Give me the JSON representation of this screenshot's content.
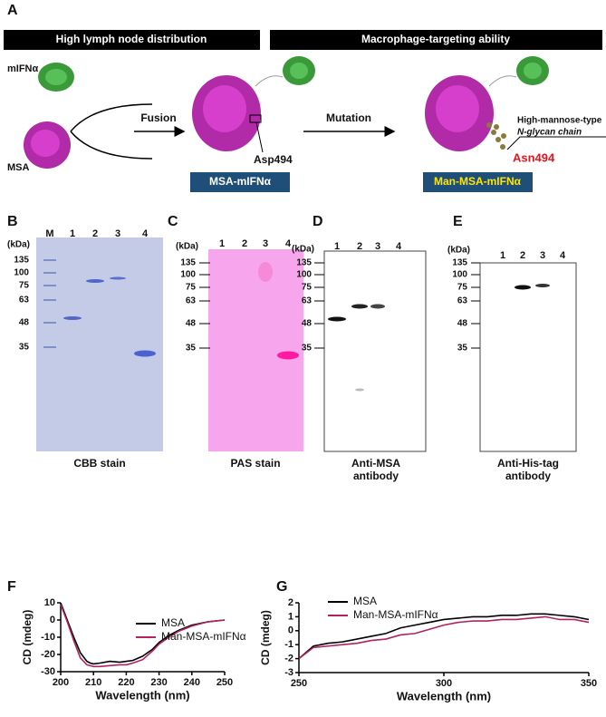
{
  "panel_labels": [
    "A",
    "B",
    "C",
    "D",
    "E",
    "F",
    "G"
  ],
  "panel_a": {
    "banners": [
      "High lymph node distribution",
      "Macrophage-targeting ability"
    ],
    "mifn": "mIFNα",
    "msa": "MSA",
    "fusion": "Fusion",
    "mutation": "Mutation",
    "asp": "Asp494",
    "asn": "Asn494",
    "glycan": [
      "High-mannose-type",
      "N-glycan chain"
    ],
    "boxes": [
      "MSA-mIFNα",
      "Man-MSA-mIFNα"
    ]
  },
  "gels": [
    {
      "lanes": [
        "M",
        "1",
        "2",
        "3",
        "4"
      ],
      "unit": "(kDa)",
      "markers": [
        "135",
        "100",
        "75",
        "63",
        "48",
        "35"
      ],
      "caption": [
        "CBB stain"
      ]
    },
    {
      "lanes": [
        "1",
        "2",
        "3",
        "4"
      ],
      "unit": "(kDa)",
      "markers": [
        "135",
        "100",
        "75",
        "63",
        "48",
        "35"
      ],
      "caption": [
        "PAS stain"
      ]
    },
    {
      "lanes": [
        "1",
        "2",
        "3",
        "4"
      ],
      "unit": "(kDa)",
      "markers": [
        "135",
        "100",
        "75",
        "63",
        "48",
        "35"
      ],
      "caption": [
        "Anti-MSA",
        "antibody"
      ]
    },
    {
      "lanes": [
        "1",
        "2",
        "3",
        "4"
      ],
      "unit": "(kDa)",
      "markers": [
        "135",
        "100",
        "75",
        "63",
        "48",
        "35"
      ],
      "caption": [
        "Anti-His-tag",
        "antibody"
      ]
    }
  ],
  "chart_data": [
    {
      "type": "line",
      "x_label": "Wavelength (nm)",
      "y_label": "CD (mdeg)",
      "x": [
        200,
        202,
        204,
        206,
        208,
        209,
        210,
        212,
        215,
        218,
        220,
        222,
        225,
        228,
        230,
        233,
        236,
        240,
        245,
        250
      ],
      "series": [
        {
          "name": "MSA",
          "color": "#000000",
          "values": [
            10,
            0,
            -10,
            -19,
            -24,
            -25,
            -25.5,
            -25,
            -24,
            -24.5,
            -24,
            -23.5,
            -21,
            -17,
            -13,
            -9,
            -6,
            -3,
            -1,
            0
          ]
        },
        {
          "name": "Man-MSA-mIFNα",
          "color": "#b0235f",
          "values": [
            9,
            -1,
            -12,
            -22,
            -26,
            -26.5,
            -27,
            -27,
            -26.5,
            -26,
            -26,
            -25,
            -23,
            -18,
            -14,
            -10,
            -6.5,
            -3.5,
            -1,
            0
          ]
        }
      ],
      "xlim": [
        200,
        250
      ],
      "xticks": [
        200,
        210,
        220,
        230,
        240,
        250
      ],
      "ylim": [
        -30,
        10
      ],
      "yticks": [
        -30,
        -20,
        -10,
        0,
        10
      ]
    },
    {
      "type": "line",
      "x_label": "Wavelength (nm)",
      "y_label": "CD (mdeg)",
      "x": [
        250,
        255,
        260,
        265,
        270,
        275,
        280,
        285,
        290,
        295,
        300,
        305,
        310,
        315,
        320,
        325,
        330,
        335,
        340,
        345,
        350
      ],
      "series": [
        {
          "name": "MSA",
          "color": "#000000",
          "values": [
            -2,
            -1.1,
            -0.9,
            -0.8,
            -0.6,
            -0.4,
            -0.2,
            0.2,
            0.4,
            0.6,
            0.8,
            0.9,
            1.0,
            1.0,
            1.1,
            1.1,
            1.2,
            1.2,
            1.1,
            1.0,
            0.8
          ]
        },
        {
          "name": "Man-MSA-mIFNα",
          "color": "#b0235f",
          "values": [
            -2,
            -1.2,
            -1.1,
            -1.0,
            -0.9,
            -0.7,
            -0.6,
            -0.3,
            -0.2,
            0.1,
            0.4,
            0.6,
            0.7,
            0.7,
            0.8,
            0.8,
            0.9,
            1.0,
            0.8,
            0.8,
            0.6
          ]
        }
      ],
      "xlim": [
        250,
        350
      ],
      "xticks": [
        250,
        300,
        350
      ],
      "ylim": [
        -3,
        2
      ],
      "yticks": [
        -3,
        -2,
        -1,
        0,
        1,
        2
      ]
    }
  ]
}
